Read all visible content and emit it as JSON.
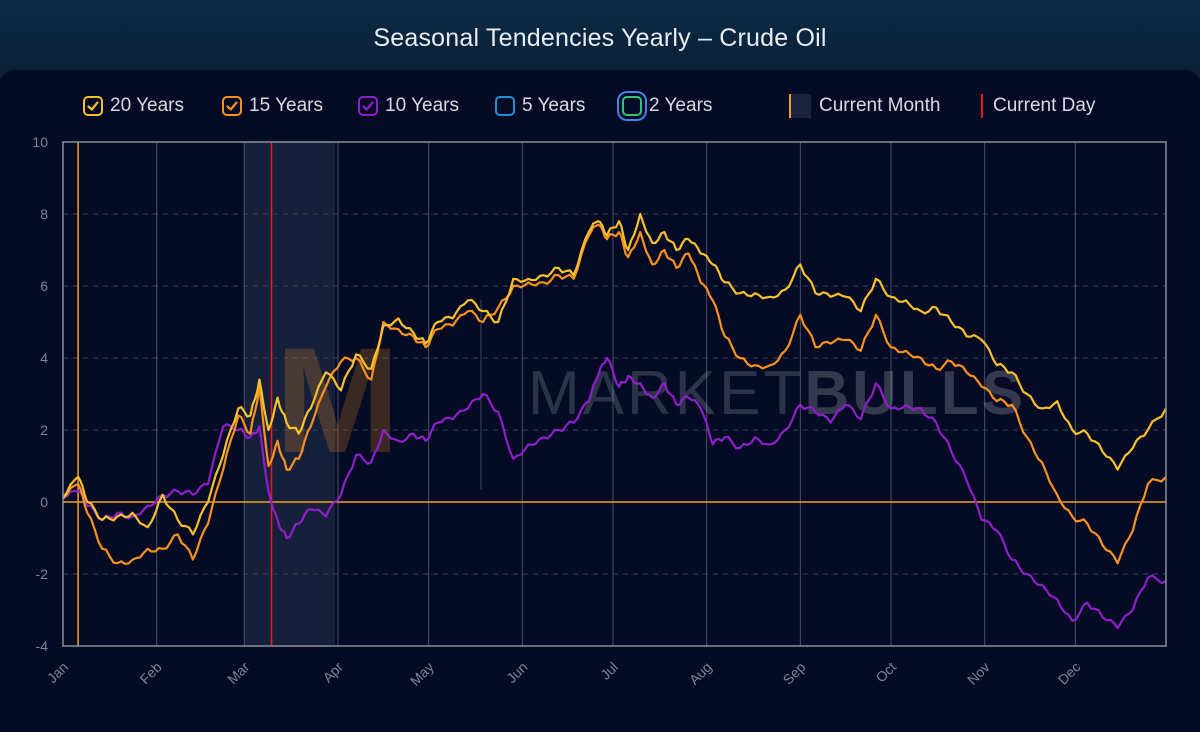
{
  "title": "Seasonal Tendencies Yearly – Crude Oil",
  "brand": {
    "word1": "MARKET",
    "word2": "BULLS"
  },
  "legend": {
    "items": [
      {
        "label": "20 Years",
        "color": "#f7c12e",
        "checked": true
      },
      {
        "label": "15 Years",
        "color": "#f79220",
        "checked": true
      },
      {
        "label": "10 Years",
        "color": "#8e1fc9",
        "checked": true
      },
      {
        "label": "5 Years",
        "color": "#1f8fd6",
        "checked": false
      },
      {
        "label": "2 Years",
        "color": "#2ec27a",
        "checked": false
      }
    ],
    "current_month": "Current Month",
    "current_day": "Current Day"
  },
  "colors": {
    "background": "#050b24",
    "grid": "#3d4357",
    "axis_border": "#8a8f9c",
    "zero_line": "#f2a11f",
    "current_day": "#e01e26",
    "current_month_shade": "#1a2440"
  },
  "chart_data": {
    "type": "line",
    "title": "Seasonal Tendencies Yearly – Crude Oil",
    "xlabel": "",
    "ylabel": "",
    "x_unit": "day of year",
    "xlim": [
      1,
      366
    ],
    "ylim": [
      -4,
      10
    ],
    "y_ticks": [
      -4,
      -2,
      0,
      2,
      4,
      6,
      8,
      10
    ],
    "x_ticks": [
      {
        "label": "Jan",
        "day": 1
      },
      {
        "label": "Feb",
        "day": 32
      },
      {
        "label": "Mar",
        "day": 61
      },
      {
        "label": "Apr",
        "day": 92
      },
      {
        "label": "May",
        "day": 122
      },
      {
        "label": "Jun",
        "day": 153
      },
      {
        "label": "Jul",
        "day": 183
      },
      {
        "label": "Aug",
        "day": 214
      },
      {
        "label": "Sep",
        "day": 245
      },
      {
        "label": "Oct",
        "day": 275
      },
      {
        "label": "Nov",
        "day": 306
      },
      {
        "label": "Dec",
        "day": 336
      }
    ],
    "grid": true,
    "legend_position": "top",
    "reference_lines": {
      "zero": 0,
      "current_day": 70,
      "vertical_marker_day": 6
    },
    "current_month_range": [
      61,
      91
    ],
    "series": [
      {
        "name": "20 Years",
        "color": "#f7c12e",
        "x": [
          1,
          6,
          9,
          14,
          19,
          24,
          29,
          34,
          39,
          44,
          49,
          54,
          59,
          63,
          66,
          69,
          72,
          75,
          79,
          83,
          88,
          93,
          98,
          103,
          107,
          112,
          117,
          121,
          125,
          130,
          135,
          140,
          145,
          150,
          155,
          160,
          165,
          170,
          175,
          178,
          181,
          185,
          188,
          192,
          196,
          200,
          204,
          208,
          212,
          216,
          220,
          225,
          230,
          235,
          240,
          245,
          250,
          255,
          260,
          265,
          270,
          275,
          280,
          285,
          290,
          295,
          300,
          305,
          310,
          315,
          320,
          325,
          330,
          335,
          340,
          345,
          350,
          355,
          360,
          366
        ],
        "y": [
          0.1,
          0.7,
          0.0,
          -0.5,
          -0.4,
          -0.3,
          -0.7,
          0.2,
          -0.5,
          -0.9,
          0.0,
          1.3,
          2.6,
          2.4,
          3.4,
          2.0,
          2.9,
          2.2,
          1.9,
          2.6,
          3.6,
          3.1,
          4.1,
          3.7,
          4.9,
          5.1,
          4.7,
          4.4,
          5.0,
          5.1,
          5.6,
          5.3,
          5.0,
          6.2,
          6.2,
          6.3,
          6.5,
          6.3,
          7.5,
          7.8,
          7.4,
          7.8,
          7.0,
          8.0,
          7.2,
          7.5,
          7.0,
          7.3,
          6.9,
          6.6,
          6.1,
          5.8,
          5.8,
          5.7,
          5.9,
          6.6,
          5.8,
          5.7,
          5.7,
          5.3,
          6.2,
          5.7,
          5.6,
          5.3,
          5.4,
          5.0,
          4.6,
          4.5,
          3.8,
          3.6,
          3.0,
          2.6,
          2.8,
          2.0,
          1.9,
          1.4,
          0.9,
          1.5,
          2.0,
          2.6
        ]
      },
      {
        "name": "15 Years",
        "color": "#f79220",
        "x": [
          1,
          6,
          9,
          14,
          19,
          24,
          29,
          34,
          39,
          44,
          49,
          54,
          59,
          63,
          66,
          69,
          72,
          75,
          79,
          83,
          88,
          93,
          98,
          103,
          107,
          112,
          117,
          121,
          125,
          130,
          135,
          140,
          145,
          150,
          155,
          160,
          165,
          170,
          175,
          178,
          181,
          185,
          188,
          192,
          196,
          200,
          204,
          208,
          212,
          216,
          220,
          225,
          230,
          235,
          240,
          245,
          250,
          255,
          260,
          265,
          270,
          275,
          280,
          285,
          290,
          295,
          300,
          305,
          310,
          315,
          320,
          325,
          330,
          335,
          340,
          345,
          350,
          355,
          360,
          366
        ],
        "y": [
          0.1,
          0.5,
          -0.3,
          -1.3,
          -1.7,
          -1.6,
          -1.3,
          -1.3,
          -0.9,
          -1.6,
          -0.6,
          0.9,
          2.4,
          1.9,
          3.2,
          1.0,
          1.7,
          0.9,
          1.2,
          2.1,
          3.2,
          3.9,
          4.0,
          3.4,
          5.0,
          4.8,
          4.6,
          4.3,
          4.8,
          4.9,
          5.3,
          5.0,
          5.4,
          6.0,
          6.1,
          6.1,
          6.3,
          6.2,
          7.4,
          7.7,
          7.3,
          7.5,
          6.8,
          7.5,
          6.6,
          7.0,
          6.5,
          6.9,
          6.1,
          5.6,
          4.6,
          4.0,
          3.8,
          3.8,
          4.2,
          5.2,
          4.3,
          4.4,
          4.5,
          4.2,
          5.2,
          4.3,
          4.2,
          4.0,
          3.7,
          3.9,
          3.6,
          3.2,
          2.8,
          2.7,
          1.8,
          1.1,
          0.2,
          -0.4,
          -0.6,
          -1.2,
          -1.7,
          -0.8,
          0.5,
          0.7
        ]
      },
      {
        "name": "10 Years",
        "color": "#8e1fc9",
        "x": [
          1,
          6,
          9,
          14,
          19,
          24,
          29,
          34,
          39,
          44,
          49,
          54,
          59,
          63,
          66,
          69,
          72,
          75,
          79,
          83,
          88,
          93,
          98,
          103,
          107,
          112,
          117,
          121,
          125,
          130,
          135,
          140,
          145,
          150,
          155,
          160,
          165,
          170,
          175,
          178,
          181,
          185,
          188,
          192,
          196,
          200,
          204,
          208,
          212,
          216,
          220,
          225,
          230,
          235,
          240,
          245,
          250,
          255,
          260,
          265,
          270,
          275,
          280,
          285,
          290,
          295,
          300,
          305,
          310,
          315,
          320,
          325,
          330,
          335,
          340,
          345,
          350,
          355,
          360,
          366
        ],
        "y": [
          0.1,
          0.3,
          -0.1,
          -0.5,
          -0.3,
          -0.4,
          -0.1,
          0.2,
          0.3,
          0.2,
          0.5,
          2.1,
          2.0,
          1.8,
          2.1,
          0.3,
          -0.5,
          -1.0,
          -0.6,
          -0.2,
          -0.4,
          0.2,
          1.3,
          1.1,
          2.0,
          1.7,
          1.9,
          1.7,
          2.2,
          2.3,
          2.6,
          3.0,
          2.5,
          1.2,
          1.6,
          1.8,
          2.0,
          2.2,
          2.8,
          3.5,
          4.0,
          3.2,
          3.5,
          3.3,
          2.9,
          3.3,
          2.7,
          2.9,
          2.6,
          1.6,
          1.8,
          1.5,
          1.8,
          1.6,
          2.0,
          2.7,
          2.5,
          2.2,
          2.7,
          2.3,
          3.3,
          2.6,
          2.7,
          2.6,
          2.2,
          1.4,
          0.6,
          -0.5,
          -0.8,
          -1.6,
          -2.0,
          -2.3,
          -2.7,
          -3.3,
          -2.8,
          -3.2,
          -3.5,
          -3.0,
          -2.1,
          -2.2
        ]
      },
      {
        "name": "5 Years",
        "color": "#1f8fd6",
        "x": [],
        "y": []
      },
      {
        "name": "2 Years",
        "color": "#2ec27a",
        "x": [],
        "y": []
      }
    ]
  }
}
